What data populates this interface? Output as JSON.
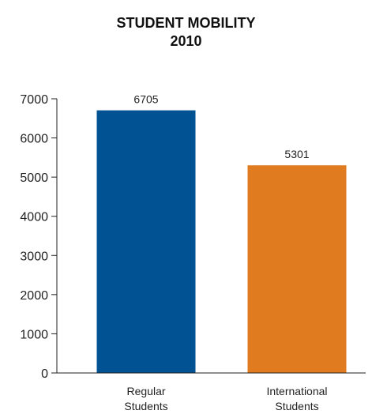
{
  "chart_data": {
    "type": "bar",
    "title": "STUDENT MOBILITY",
    "subtitle": "2010",
    "categories": [
      [
        "Regular",
        "Students"
      ],
      [
        "International",
        "Students"
      ]
    ],
    "values": [
      6705,
      5301
    ],
    "data_labels": [
      "6705",
      "5301"
    ],
    "colors": [
      "#005292",
      "#e07b1f"
    ],
    "ylim": [
      0,
      7000
    ],
    "yticks": [
      0,
      1000,
      2000,
      3000,
      4000,
      5000,
      6000,
      7000
    ],
    "grid": false,
    "legend": "none"
  }
}
